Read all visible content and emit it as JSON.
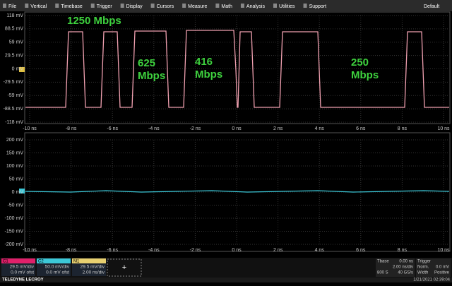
{
  "menu": {
    "items": [
      "File",
      "Vertical",
      "Timebase",
      "Trigger",
      "Display",
      "Cursors",
      "Measure",
      "Math",
      "Analysis",
      "Utilities",
      "Support"
    ],
    "default": "Default"
  },
  "upper_grid": {
    "y_labels": [
      "118 mV",
      "88.5 mV",
      "59 mV",
      "29.5 mV",
      "0 mV",
      "-29.5 mV",
      "-59 mV",
      "-88.5 mV",
      "-118 mV"
    ],
    "x_labels": [
      "-10 ns",
      "-8 ns",
      "-6 ns",
      "-4 ns",
      "-2 ns",
      "0 ns",
      "2 ns",
      "4 ns",
      "6 ns",
      "8 ns",
      "10 ns"
    ],
    "annotations": [
      [
        "1250 Mbps"
      ],
      [
        "625",
        "Mbps"
      ],
      [
        "416",
        "Mbps"
      ],
      [
        "250",
        "Mbps"
      ]
    ]
  },
  "lower_grid": {
    "y_labels": [
      "200 mV",
      "150 mV",
      "100 mV",
      "50 mV",
      "0 mV",
      "-50 mV",
      "-100 mV",
      "-150 mV",
      "-200 mV"
    ],
    "x_labels": [
      "-10 ns",
      "-8 ns",
      "-6 ns",
      "-4 ns",
      "-2 ns",
      "0 ns",
      "2 ns",
      "4 ns",
      "6 ns",
      "8 ns",
      "10 ns"
    ]
  },
  "channels": [
    {
      "name": "C1",
      "lines": [
        "29.5 mV/div",
        "0.0 mV ofst"
      ]
    },
    {
      "name": "C2",
      "lines": [
        "50.0 mV/div",
        "0.0 mV ofst"
      ]
    },
    {
      "name": "M1",
      "lines": [
        "29.5 mV/div",
        "2.00 ns/div"
      ]
    }
  ],
  "add": "+",
  "timebase": {
    "title": "Tbase",
    "offset": "0.00 ns",
    "samples": "800 S",
    "scale": "2.00 ns/div",
    "rate": "40 GS/s"
  },
  "trigger": {
    "title": "Trigger",
    "level": "0.0 mV",
    "mode": "Norm.",
    "type": "Width",
    "slope": "Positive"
  },
  "footer": {
    "brand": "TELEDYNE LECROY",
    "datetime": "1/21/2021 02:39:04"
  }
}
